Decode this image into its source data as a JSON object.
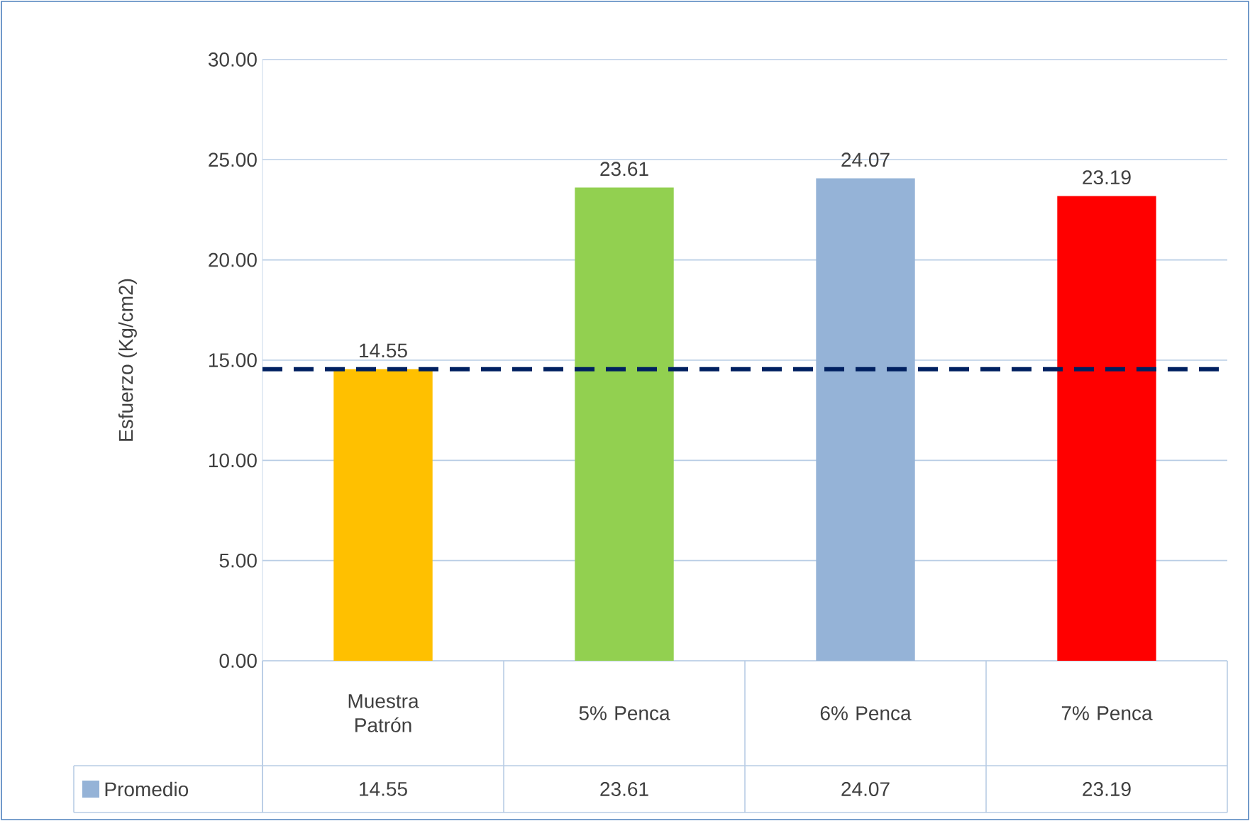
{
  "chart_data": {
    "type": "bar",
    "ylabel": "Esfuerzo (Kg/cm2)",
    "categories": [
      "Muestra Patrón",
      "5% Penca",
      "6% Penca",
      "7% Penca"
    ],
    "series": [
      {
        "name": "Promedio",
        "color": "#95b3d7",
        "colors": [
          "#ffc000",
          "#92d050",
          "#95b3d7",
          "#ff0000"
        ],
        "values": [
          14.55,
          23.61,
          24.07,
          23.19
        ],
        "value_labels": [
          "14.55",
          "23.61",
          "24.07",
          "23.19"
        ]
      }
    ],
    "ylim": [
      0,
      30
    ],
    "yticks": [
      {
        "value": 0,
        "label": "0.00"
      },
      {
        "value": 5,
        "label": "5.00"
      },
      {
        "value": 10,
        "label": "10.00"
      },
      {
        "value": 15,
        "label": "15.00"
      },
      {
        "value": 20,
        "label": "20.00"
      },
      {
        "value": 25,
        "label": "25.00"
      },
      {
        "value": 30,
        "label": "30.00"
      }
    ],
    "ref_lines": [
      {
        "axis": "y",
        "value": 14.55,
        "color": "#002060",
        "line_style": "dashed"
      }
    ],
    "grid": "y",
    "legend": "bottom"
  }
}
